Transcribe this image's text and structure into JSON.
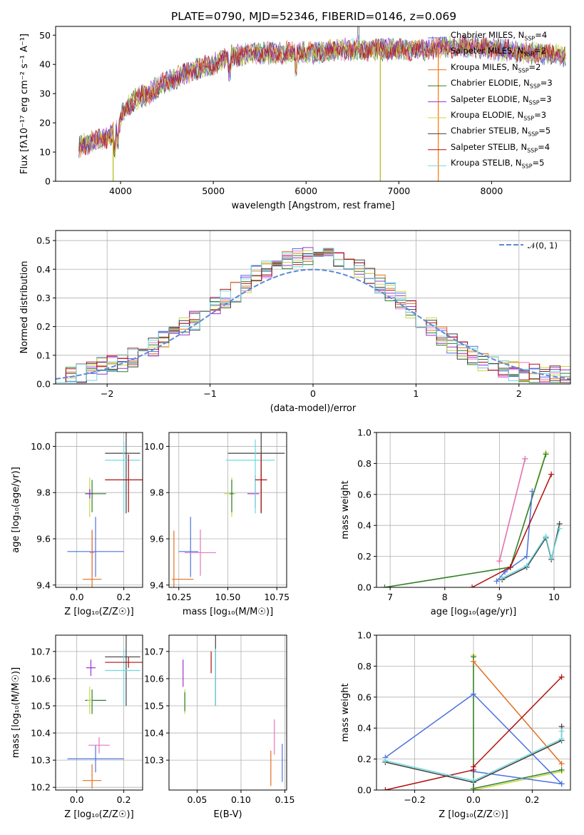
{
  "chart_data": [
    {
      "type": "line",
      "title": "PLATE=0790, MJD=52346, FIBERID=0146, z=0.069",
      "xlabel": "wavelength [Angstrom, rest frame]",
      "ylabel": "Flux [fλ10⁻¹⁷ erg cm⁻² s⁻¹ A⁻¹]",
      "xlim": [
        3300,
        8850
      ],
      "ylim": [
        0,
        53
      ],
      "xticks": [
        4000,
        5000,
        6000,
        7000,
        8000
      ],
      "yticks": [
        0,
        10,
        20,
        30,
        40,
        50
      ],
      "grid": false,
      "legend": "right",
      "continuum": {
        "x": [
          3550,
          3650,
          3750,
          3850,
          3950,
          4050,
          4150,
          4300,
          4500,
          4700,
          5000,
          5200,
          5500,
          5800,
          6100,
          6400,
          6800,
          7200,
          7500,
          7800,
          8100,
          8400,
          8850
        ],
        "y": [
          12,
          13,
          14,
          15,
          17,
          25,
          28,
          30,
          34,
          37,
          40,
          43,
          44,
          44,
          44,
          45,
          45,
          45,
          46,
          46,
          45,
          44,
          43
        ]
      },
      "spikes": [
        {
          "x": 3920,
          "y": 0,
          "color": "#bcbd22"
        },
        {
          "x": 6800,
          "y": 0,
          "color": "#bcbd22"
        },
        {
          "x": 7425,
          "y": 0,
          "color": "#ff7f0e"
        }
      ],
      "series": [
        {
          "name": "Chabrier MILES, N<sub>SSP</sub>=4",
          "color": "#4c72e0"
        },
        {
          "name": "Salpeter MILES, N<sub>SSP</sub>=2",
          "color": "#e377c2"
        },
        {
          "name": "Kroupa MILES, N<sub>SSP</sub>=2",
          "color": "#e07020"
        },
        {
          "name": "Chabrier ELODIE, N<sub>SSP</sub>=3",
          "color": "#2f7f2f"
        },
        {
          "name": "Salpeter ELODIE, N<sub>SSP</sub>=3",
          "color": "#9b30d0"
        },
        {
          "name": "Kroupa ELODIE, N<sub>SSP</sub>=3",
          "color": "#c8d840"
        },
        {
          "name": "Chabrier STELIB, N<sub>SSP</sub>=5",
          "color": "#404040"
        },
        {
          "name": "Salpeter STELIB, N<sub>SSP</sub>=4",
          "color": "#b01010"
        },
        {
          "name": "Kroupa STELIB, N<sub>SSP</sub>=5",
          "color": "#70d8e0"
        }
      ]
    },
    {
      "type": "histogram",
      "xlabel": "(data-model)/error",
      "ylabel": "Normed distribution",
      "xlim": [
        -2.5,
        2.5
      ],
      "ylim": [
        0,
        0.535
      ],
      "xticks": [
        -2,
        -1,
        0,
        1,
        2
      ],
      "yticks": [
        0.0,
        0.1,
        0.2,
        0.3,
        0.4,
        0.5
      ],
      "grid": true,
      "legend": "top-right",
      "bin_width": 0.1,
      "envelope": [
        0.02,
        0.03,
        0.035,
        0.045,
        0.06,
        0.07,
        0.075,
        0.09,
        0.1,
        0.13,
        0.15,
        0.17,
        0.2,
        0.22,
        0.25,
        0.27,
        0.3,
        0.32,
        0.35,
        0.38,
        0.4,
        0.42,
        0.43,
        0.44,
        0.45,
        0.45,
        0.45,
        0.44,
        0.42,
        0.4,
        0.38,
        0.35,
        0.32,
        0.29,
        0.26,
        0.23,
        0.2,
        0.17,
        0.14,
        0.12,
        0.1,
        0.08,
        0.07,
        0.055,
        0.045,
        0.04,
        0.035,
        0.03,
        0.03,
        0.03
      ],
      "reference": {
        "name": "𝒩(0, 1)",
        "color": "#5b8ad6",
        "mean": 0,
        "sigma": 1
      }
    },
    {
      "type": "errorbar",
      "xlabel": "Z [log₁₀(Z/Z☉)]",
      "ylabel": "age  [log₁₀(age/yr)]",
      "xlim": [
        -0.09,
        0.28
      ],
      "ylim": [
        9.39,
        10.06
      ],
      "xticks": [
        0.0,
        0.2
      ],
      "yticks": [
        9.4,
        9.6,
        9.8,
        10.0
      ],
      "points": [
        {
          "color": "#4c72e0",
          "x": 0.08,
          "y": 9.545,
          "xerr": [
            0.12,
            0.12
          ],
          "yerr": [
            0.11,
            0.15
          ]
        },
        {
          "color": "#e377c2",
          "x": 0.065,
          "y": 9.54,
          "xerr": [
            0.01,
            0.01
          ],
          "yerr": [
            0.1,
            0.1
          ]
        },
        {
          "color": "#e07020",
          "x": 0.065,
          "y": 9.425,
          "xerr": [
            0.04,
            0.04
          ],
          "yerr": [
            0.05,
            0.21
          ]
        },
        {
          "color": "#c8d840",
          "x": 0.055,
          "y": 9.795,
          "xerr": [
            0.02,
            0.02
          ],
          "yerr": [
            0.1,
            0.07
          ]
        },
        {
          "color": "#2f7f2f",
          "x": 0.065,
          "y": 9.795,
          "xerr": [
            0.03,
            0.06
          ],
          "yerr": [
            0.08,
            0.06
          ]
        },
        {
          "color": "#9b30d0",
          "x": 0.055,
          "y": 9.795,
          "xerr": [
            0.01,
            0.01
          ],
          "yerr": [
            0.02,
            0.02
          ]
        },
        {
          "color": "#404040",
          "x": 0.21,
          "y": 9.97,
          "xerr": [
            0.09,
            0.06
          ],
          "yerr": [
            0.26,
            0.09
          ]
        },
        {
          "color": "#70d8e0",
          "x": 0.2,
          "y": 9.94,
          "xerr": [
            0.08,
            0.07
          ],
          "yerr": [
            0.23,
            0.08
          ]
        },
        {
          "color": "#b01010",
          "x": 0.22,
          "y": 9.855,
          "xerr": [
            0.1,
            0.06
          ],
          "yerr": [
            0.14,
            0.11
          ]
        }
      ]
    },
    {
      "type": "errorbar",
      "xlabel": "mass [log₁₀(M/M☉)]",
      "ylabel": "",
      "xlim": [
        10.2,
        10.8
      ],
      "ylim": [
        9.39,
        10.06
      ],
      "xticks": [
        10.25,
        10.5,
        10.75
      ],
      "yticks": [
        9.4,
        9.6,
        9.8,
        10.0
      ],
      "points": [
        {
          "color": "#4c72e0",
          "x": 10.31,
          "y": 9.545,
          "xerr": [
            0.06,
            0.04
          ],
          "yerr": [
            0.11,
            0.15
          ]
        },
        {
          "color": "#e377c2",
          "x": 10.36,
          "y": 9.54,
          "xerr": [
            0.08,
            0.08
          ],
          "yerr": [
            0.1,
            0.1
          ]
        },
        {
          "color": "#e07020",
          "x": 10.225,
          "y": 9.425,
          "xerr": [
            0.01,
            0.1
          ],
          "yerr": [
            0.05,
            0.21
          ]
        },
        {
          "color": "#c8d840",
          "x": 10.52,
          "y": 9.795,
          "xerr": [
            0.04,
            0.02
          ],
          "yerr": [
            0.1,
            0.07
          ]
        },
        {
          "color": "#2f7f2f",
          "x": 10.52,
          "y": 9.795,
          "xerr": [
            0.01,
            0.01
          ],
          "yerr": [
            0.08,
            0.06
          ]
        },
        {
          "color": "#9b30d0",
          "x": 10.64,
          "y": 9.795,
          "xerr": [
            0.04,
            0.02
          ],
          "yerr": [
            0.06,
            0.08
          ]
        },
        {
          "color": "#404040",
          "x": 10.67,
          "y": 9.97,
          "xerr": [
            0.17,
            0.12
          ],
          "yerr": [
            0.26,
            0.09
          ]
        },
        {
          "color": "#70d8e0",
          "x": 10.64,
          "y": 9.94,
          "xerr": [
            0.15,
            0.1
          ],
          "yerr": [
            0.23,
            0.09
          ]
        },
        {
          "color": "#b01010",
          "x": 10.67,
          "y": 9.855,
          "xerr": [
            0.03,
            0.03
          ],
          "yerr": [
            0.14,
            0.11
          ]
        }
      ]
    },
    {
      "type": "line",
      "xlabel": "age  [log₁₀(age/yr)]",
      "ylabel": "mass weight",
      "xlim": [
        6.75,
        10.3
      ],
      "ylim": [
        0,
        1
      ],
      "xticks": [
        7,
        8,
        9,
        10
      ],
      "yticks": [
        0.0,
        0.2,
        0.4,
        0.6,
        0.8,
        1.0
      ],
      "grid": true,
      "series": [
        {
          "color": "#c8d840",
          "x": [
            6.9,
            9.2,
            9.85
          ],
          "y": [
            0,
            0.13,
            0.87
          ]
        },
        {
          "color": "#2f7f2f",
          "x": [
            6.9,
            9.2,
            9.85
          ],
          "y": [
            0,
            0.13,
            0.86
          ]
        },
        {
          "color": "#e07020",
          "x": [
            9.0,
            9.47
          ],
          "y": [
            0.17,
            0.83
          ]
        },
        {
          "color": "#e377c2",
          "x": [
            9.0,
            9.47
          ],
          "y": [
            0.17,
            0.83
          ]
        },
        {
          "color": "#4c72e0",
          "x": [
            8.95,
            9.1,
            9.5,
            9.6
          ],
          "y": [
            0.04,
            0.1,
            0.2,
            0.62
          ]
        },
        {
          "color": "#b01010",
          "x": [
            8.5,
            9.2,
            9.95
          ],
          "y": [
            0,
            0.13,
            0.73
          ]
        },
        {
          "color": "#404040",
          "x": [
            9.05,
            9.5,
            9.85,
            9.95,
            10.1
          ],
          "y": [
            0.05,
            0.13,
            0.32,
            0.18,
            0.41
          ]
        },
        {
          "color": "#70d8e0",
          "x": [
            9.05,
            9.5,
            9.85,
            9.95,
            10.1
          ],
          "y": [
            0.06,
            0.14,
            0.33,
            0.19,
            0.38
          ]
        }
      ]
    },
    {
      "type": "errorbar",
      "xlabel": "Z [log₁₀(Z/Z☉)]",
      "ylabel": "mass [log₁₀(M/M☉)]",
      "xlim": [
        -0.09,
        0.28
      ],
      "ylim": [
        10.19,
        10.76
      ],
      "xticks": [
        0.0,
        0.2
      ],
      "yticks": [
        10.2,
        10.3,
        10.4,
        10.5,
        10.6,
        10.7
      ],
      "points": [
        {
          "color": "#4c72e0",
          "x": 0.08,
          "y": 10.305,
          "xerr": [
            0.12,
            0.12
          ],
          "yerr": [
            0.05,
            0.05
          ]
        },
        {
          "color": "#e377c2",
          "x": 0.095,
          "y": 10.355,
          "xerr": [
            0.045,
            0.045
          ],
          "yerr": [
            0.03,
            0.03
          ]
        },
        {
          "color": "#e07020",
          "x": 0.065,
          "y": 10.225,
          "xerr": [
            0.04,
            0.04
          ],
          "yerr": [
            0.03,
            0.06
          ]
        },
        {
          "color": "#2f7f2f",
          "x": 0.065,
          "y": 10.52,
          "xerr": [
            0.03,
            0.06
          ],
          "yerr": [
            0.05,
            0.04
          ]
        },
        {
          "color": "#c8d840",
          "x": 0.055,
          "y": 10.52,
          "xerr": [
            0.01,
            0.01
          ],
          "yerr": [
            0.05,
            0.05
          ]
        },
        {
          "color": "#9b30d0",
          "x": 0.06,
          "y": 10.64,
          "xerr": [
            0.02,
            0.02
          ],
          "yerr": [
            0.03,
            0.03
          ]
        },
        {
          "color": "#404040",
          "x": 0.21,
          "y": 10.68,
          "xerr": [
            0.09,
            0.06
          ],
          "yerr": [
            0.18,
            0.08
          ]
        },
        {
          "color": "#70d8e0",
          "x": 0.2,
          "y": 10.63,
          "xerr": [
            0.08,
            0.07
          ],
          "yerr": [
            0.13,
            0.08
          ]
        },
        {
          "color": "#b01010",
          "x": 0.22,
          "y": 10.66,
          "xerr": [
            0.1,
            0.06
          ],
          "yerr": [
            0.02,
            0.02
          ]
        }
      ]
    },
    {
      "type": "errorbar",
      "xlabel": "E(B-V)",
      "ylabel": "",
      "xlim": [
        0.018,
        0.152
      ],
      "ylim": [
        10.19,
        10.76
      ],
      "xticks": [
        0.05,
        0.1,
        0.15
      ],
      "yticks": [
        10.3,
        10.4,
        10.5,
        10.6,
        10.7
      ],
      "points": [
        {
          "color": "#9b30d0",
          "x": 0.034,
          "y": 10.62,
          "yerr": [
            0.05,
            0.05
          ]
        },
        {
          "color": "#c8d840",
          "x": 0.036,
          "y": 10.52,
          "yerr": [
            0.05,
            0.04
          ]
        },
        {
          "color": "#2f7f2f",
          "x": 0.036,
          "y": 10.52,
          "yerr": [
            0.04,
            0.03
          ]
        },
        {
          "color": "#b01010",
          "x": 0.066,
          "y": 10.66,
          "yerr": [
            0.04,
            0.04
          ]
        },
        {
          "color": "#404040",
          "x": 0.071,
          "y": 10.68,
          "yerr": [
            0.18,
            0.08
          ]
        },
        {
          "color": "#70d8e0",
          "x": 0.071,
          "y": 10.63,
          "yerr": [
            0.13,
            0.08
          ]
        },
        {
          "color": "#e07020",
          "x": 0.134,
          "y": 10.235,
          "yerr": [
            0.03,
            0.1
          ]
        },
        {
          "color": "#e377c2",
          "x": 0.138,
          "y": 10.37,
          "yerr": [
            0.05,
            0.08
          ]
        },
        {
          "color": "#4c72e0",
          "x": 0.147,
          "y": 10.26,
          "yerr": [
            0.04,
            0.1
          ]
        }
      ]
    },
    {
      "type": "line",
      "xlabel": "Z [log₁₀(Z/Z☉)]",
      "ylabel": "mass weight",
      "xlim": [
        -0.33,
        0.33
      ],
      "ylim": [
        0,
        1
      ],
      "xticks": [
        -0.2,
        0.0,
        0.2
      ],
      "yticks": [
        0.0,
        0.2,
        0.4,
        0.6,
        0.8,
        1.0
      ],
      "grid": true,
      "series": [
        {
          "color": "#c8d840",
          "x": [
            0.0,
            0.0,
            0.3
          ],
          "y": [
            0.87,
            0.0,
            0.12
          ]
        },
        {
          "color": "#2f7f2f",
          "x": [
            0.0,
            0.0,
            0.3
          ],
          "y": [
            0.86,
            0.01,
            0.13
          ]
        },
        {
          "color": "#e07020",
          "x": [
            0.0,
            0.3
          ],
          "y": [
            0.83,
            0.17
          ]
        },
        {
          "color": "#4c72e0",
          "x": [
            -0.3,
            0.0,
            0.3
          ],
          "y": [
            0.21,
            0.62,
            0.04
          ]
        },
        {
          "color": "#4c72e0",
          "x": [
            0.0,
            0.3
          ],
          "y": [
            0.12,
            0.04
          ]
        },
        {
          "color": "#b01010",
          "x": [
            -0.3,
            0.0,
            0.0,
            0.3
          ],
          "y": [
            0.0,
            0.13,
            0.15,
            0.73
          ]
        },
        {
          "color": "#404040",
          "x": [
            -0.3,
            0.0,
            0.3,
            0.3
          ],
          "y": [
            0.18,
            0.05,
            0.32,
            0.41
          ]
        },
        {
          "color": "#70d8e0",
          "x": [
            -0.3,
            0.0,
            0.3,
            0.3
          ],
          "y": [
            0.19,
            0.06,
            0.33,
            0.38
          ]
        }
      ]
    }
  ]
}
